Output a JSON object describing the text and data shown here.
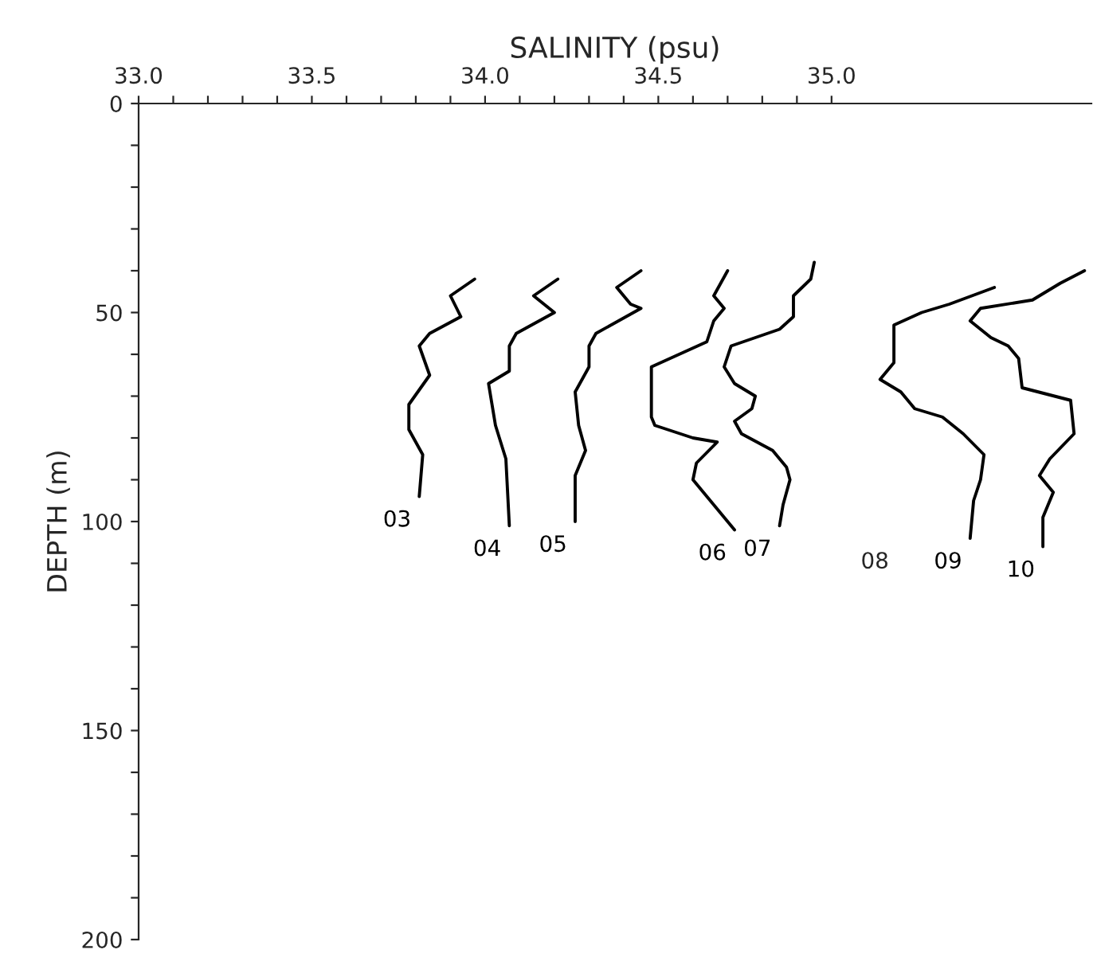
{
  "chart_data": {
    "type": "line",
    "xlabel": "SALINITY (psu)",
    "ylabel": "DEPTH (m)",
    "xlim": [
      33.0,
      35.75
    ],
    "ylim": [
      200,
      0
    ],
    "xticks": [
      {
        "value": 33.0,
        "label": "33.0"
      },
      {
        "value": 33.1,
        "label": null
      },
      {
        "value": 33.2,
        "label": null
      },
      {
        "value": 33.3,
        "label": null
      },
      {
        "value": 33.4,
        "label": null
      },
      {
        "value": 33.5,
        "label": "33.5"
      },
      {
        "value": 33.6,
        "label": null
      },
      {
        "value": 33.7,
        "label": null
      },
      {
        "value": 33.8,
        "label": null
      },
      {
        "value": 33.9,
        "label": null
      },
      {
        "value": 34.0,
        "label": "34.0"
      },
      {
        "value": 34.1,
        "label": null
      },
      {
        "value": 34.2,
        "label": null
      },
      {
        "value": 34.3,
        "label": null
      },
      {
        "value": 34.4,
        "label": null
      },
      {
        "value": 34.5,
        "label": "34.5"
      },
      {
        "value": 34.6,
        "label": null
      },
      {
        "value": 34.7,
        "label": null
      },
      {
        "value": 34.8,
        "label": null
      },
      {
        "value": 34.9,
        "label": null
      },
      {
        "value": 35.0,
        "label": "35.0"
      }
    ],
    "yticks": [
      0,
      {
        "value": 10,
        "label": null
      },
      {
        "value": 20,
        "label": null
      },
      {
        "value": 30,
        "label": null
      },
      {
        "value": 40,
        "label": null
      },
      50,
      {
        "value": 60,
        "label": null
      },
      {
        "value": 70,
        "label": null
      },
      {
        "value": 80,
        "label": null
      },
      {
        "value": 90,
        "label": null
      },
      100,
      {
        "value": 110,
        "label": null
      },
      {
        "value": 120,
        "label": null
      },
      {
        "value": 130,
        "label": null
      },
      {
        "value": 140,
        "label": null
      },
      150,
      {
        "value": 160,
        "label": null
      },
      {
        "value": 170,
        "label": null
      },
      {
        "value": 180,
        "label": null
      },
      {
        "value": 190,
        "label": null
      },
      200
    ],
    "line_style": "solid",
    "series": [
      {
        "name": "03",
        "color": "#000000",
        "x": [
          33.97,
          33.9,
          33.93,
          33.84,
          33.81,
          33.84,
          33.78,
          33.78,
          33.82,
          33.81
        ],
        "values": [
          42,
          46,
          51,
          55,
          58,
          65,
          72,
          78,
          84,
          94
        ]
      },
      {
        "name": "04",
        "color": "#000000",
        "x": [
          34.21,
          34.14,
          34.2,
          34.09,
          34.07,
          34.07,
          34.01,
          34.03,
          34.06,
          34.07
        ],
        "values": [
          42,
          46,
          50,
          55,
          58,
          64,
          67,
          77,
          85,
          101
        ]
      },
      {
        "name": "05",
        "color": "#000000",
        "x": [
          34.45,
          34.38,
          34.42,
          34.45,
          34.32,
          34.3,
          34.3,
          34.26,
          34.27,
          34.29,
          34.26,
          34.26
        ],
        "values": [
          40,
          44,
          48,
          49,
          55,
          58,
          63,
          69,
          77,
          83,
          89,
          100
        ]
      },
      {
        "name": "06",
        "color": "#000000",
        "x": [
          34.7,
          34.66,
          34.69,
          34.66,
          34.64,
          34.48,
          34.48,
          34.49,
          34.6,
          34.67,
          34.61,
          34.6,
          34.63,
          34.69,
          34.72
        ],
        "values": [
          40,
          46,
          49,
          52,
          57,
          63,
          75,
          77,
          80,
          81,
          86,
          90,
          93,
          99,
          102
        ]
      },
      {
        "name": "07",
        "color": "#000000",
        "x": [
          34.95,
          34.94,
          34.89,
          34.89,
          34.85,
          34.71,
          34.69,
          34.72,
          34.78,
          34.77,
          34.72,
          34.74,
          34.83,
          34.87,
          34.88,
          34.86,
          34.85
        ],
        "values": [
          38,
          42,
          46,
          51,
          54,
          58,
          63,
          67,
          70,
          73,
          76,
          79,
          83,
          87,
          90,
          96,
          101
        ]
      },
      {
        "name": "09",
        "color": "#000000",
        "x": [
          35.47,
          35.34,
          35.26,
          35.18,
          35.18,
          35.18,
          35.14,
          35.2,
          35.24,
          35.32,
          35.38,
          35.44,
          35.43,
          35.41,
          35.4
        ],
        "values": [
          44,
          48,
          50,
          53,
          58,
          62,
          66,
          69,
          73,
          75,
          79,
          84,
          90,
          95,
          104
        ]
      },
      {
        "name": "10",
        "color": "#000000",
        "x": [
          35.73,
          35.66,
          35.58,
          35.43,
          35.4,
          35.46,
          35.51,
          35.54,
          35.55,
          35.69,
          35.7,
          35.63,
          35.6,
          35.64,
          35.61,
          35.61
        ],
        "values": [
          40,
          43,
          47,
          49,
          52,
          56,
          58,
          61,
          68,
          71,
          79,
          85,
          89,
          93,
          99,
          106
        ]
      }
    ],
    "annotations": [
      "08"
    ]
  }
}
